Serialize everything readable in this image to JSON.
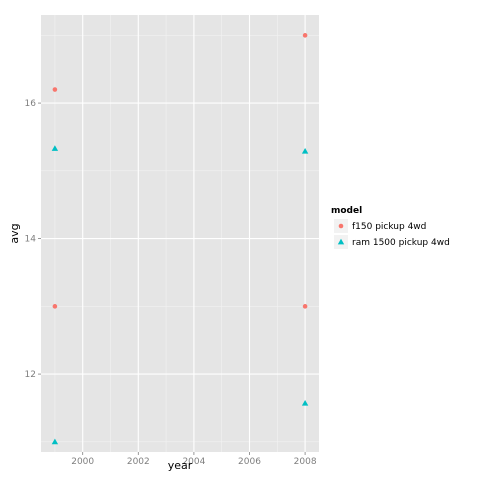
{
  "chart_data": {
    "type": "scatter",
    "xlabel": "year",
    "ylabel": "avg",
    "xlim": [
      1998.5,
      2008.5
    ],
    "ylim": [
      10.85,
      17.3
    ],
    "xticks": [
      2000,
      2002,
      2004,
      2006,
      2008
    ],
    "xtick_labels": [
      "2000",
      "2002",
      "2004",
      "2006",
      "2008"
    ],
    "yticks": [
      12,
      14,
      16
    ],
    "ytick_labels": [
      "12",
      "14",
      "16"
    ],
    "grid": true,
    "legend": {
      "title": "model",
      "placement": "right",
      "entries": [
        {
          "label": "f150 pickup 4wd",
          "color": "#F8766D",
          "shape": "circle"
        },
        {
          "label": "ram 1500 pickup 4wd",
          "color": "#00BFC4",
          "shape": "triangle"
        }
      ]
    },
    "series": [
      {
        "name": "f150 pickup 4wd",
        "color": "#F8766D",
        "shape": "circle",
        "points": [
          {
            "x": 1999,
            "y": 16.2
          },
          {
            "x": 1999,
            "y": 13.0
          },
          {
            "x": 2008,
            "y": 17.0
          },
          {
            "x": 2008,
            "y": 13.0
          }
        ]
      },
      {
        "name": "ram 1500 pickup 4wd",
        "color": "#00BFC4",
        "shape": "triangle",
        "points": [
          {
            "x": 1999,
            "y": 15.33
          },
          {
            "x": 1999,
            "y": 11.0
          },
          {
            "x": 2008,
            "y": 15.29
          },
          {
            "x": 2008,
            "y": 11.57
          }
        ]
      }
    ]
  }
}
